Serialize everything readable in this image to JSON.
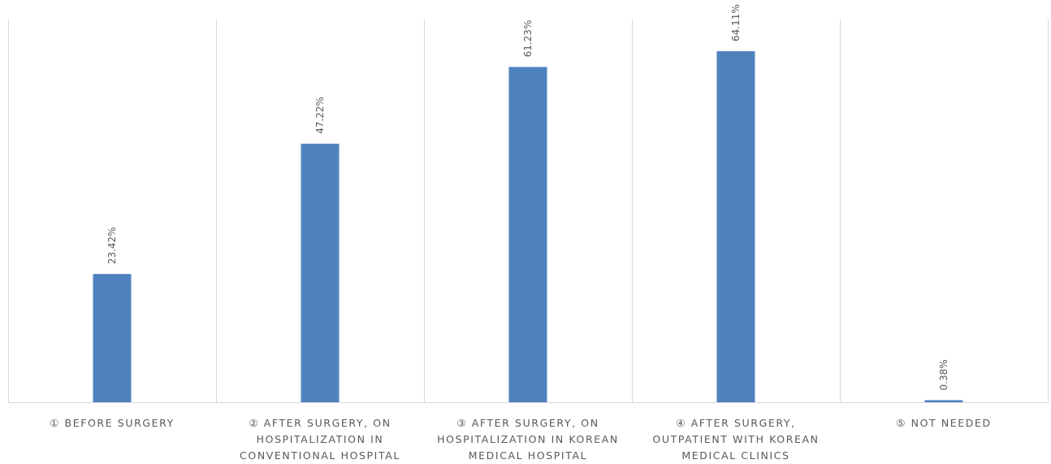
{
  "chart_data": {
    "type": "bar",
    "title": "",
    "xlabel": "",
    "ylabel": "",
    "ylim": [
      0,
      70
    ],
    "categories": [
      "① BEFORE SURGERY",
      "② AFTER SURGERY, ON\nHOSPITALIZATION IN\nCONVENTIONAL HOSPITAL",
      "③ AFTER SURGERY, ON\nHOSPITALIZATION IN KOREAN\nMEDICAL HOSPITAL",
      "④ AFTER SURGERY,\nOUTPATIENT WITH KOREAN\nMEDICAL CLINICS",
      "⑤ NOT NEEDED"
    ],
    "values": [
      23.42,
      47.22,
      61.23,
      64.11,
      0.38
    ],
    "data_labels": [
      "23.42%",
      "47.22%",
      "61.23%",
      "64.11%",
      "0.38%"
    ],
    "bar_color": "#4f81bd",
    "grid": true
  }
}
